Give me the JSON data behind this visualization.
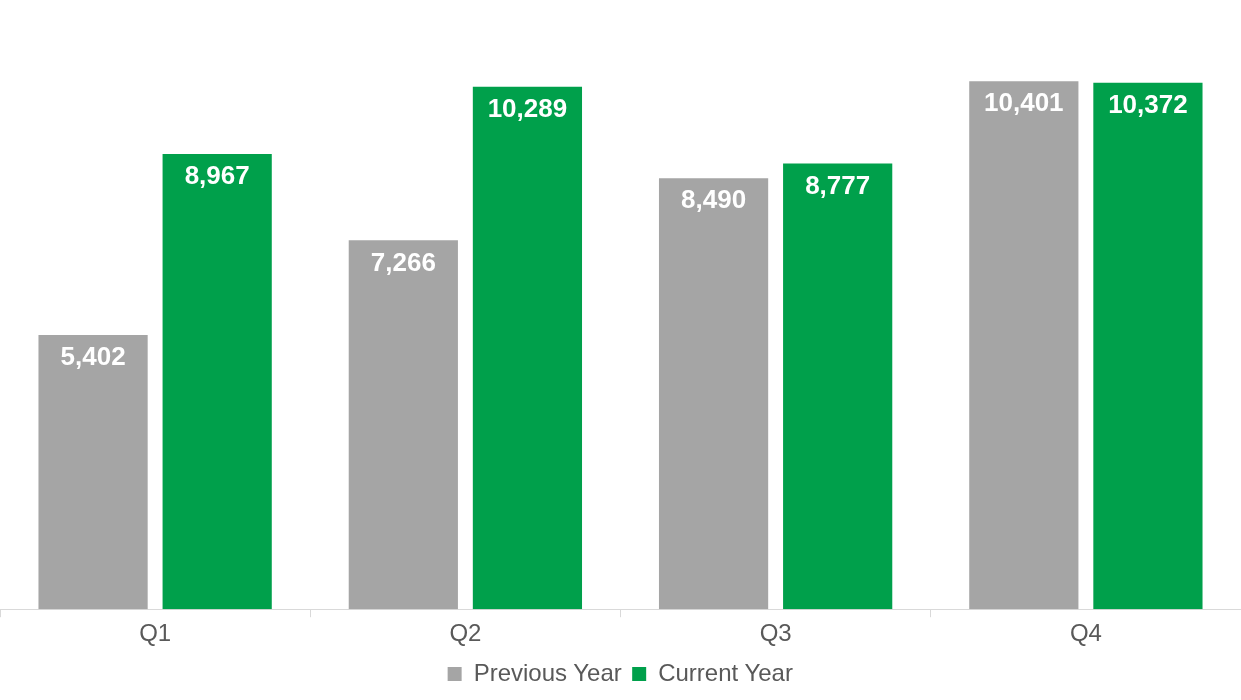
{
  "chart_data": {
    "type": "bar",
    "categories": [
      "Q1",
      "Q2",
      "Q3",
      "Q4"
    ],
    "series": [
      {
        "name": "Previous Year",
        "color": "#a5a5a5",
        "values": [
          5402,
          7266,
          8490,
          10401
        ],
        "value_labels": [
          "5,402",
          "7,266",
          "8,490",
          "10,401"
        ]
      },
      {
        "name": "Current Year",
        "color": "#00a04b",
        "values": [
          8967,
          10289,
          8777,
          10372
        ],
        "value_labels": [
          "8,967",
          "10,289",
          "8,777",
          "10,372"
        ]
      }
    ],
    "legend": "bottom",
    "grid": false
  }
}
